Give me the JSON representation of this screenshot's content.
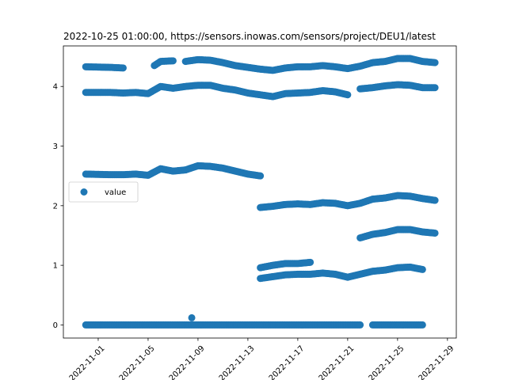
{
  "chart_data": {
    "type": "scatter",
    "title": "2022-10-25 01:00:00, https://sensors.inowas.com/sensors/project/DEU1/latest",
    "xlabel": "",
    "ylabel": "",
    "xlim": [
      "2022-10-29T05:00",
      "2022-11-29T17:00"
    ],
    "ylim": [
      -0.22,
      4.68
    ],
    "x_ticks": [
      "2022-11-01",
      "2022-11-05",
      "2022-11-09",
      "2022-11-13",
      "2022-11-17",
      "2022-11-21",
      "2022-11-25",
      "2022-11-29"
    ],
    "y_ticks": [
      0,
      1,
      2,
      3,
      4
    ],
    "grid": false,
    "legend": {
      "position": "center-left",
      "entries": [
        "value"
      ]
    },
    "marker_color": "#1f77b4",
    "series": [
      {
        "name": "value",
        "segments": [
          {
            "points": [
              [
                "2022-10-31",
                4.33
              ],
              [
                "2022-11-02",
                4.32
              ],
              [
                "2022-11-03",
                4.31
              ]
            ]
          },
          {
            "points": [
              [
                "2022-11-05T12:00",
                4.35
              ],
              [
                "2022-11-06",
                4.42
              ],
              [
                "2022-11-07",
                4.43
              ]
            ]
          },
          {
            "points": [
              [
                "2022-11-08",
                4.42
              ],
              [
                "2022-11-09",
                4.45
              ],
              [
                "2022-11-10",
                4.44
              ],
              [
                "2022-11-11",
                4.4
              ],
              [
                "2022-11-12",
                4.35
              ],
              [
                "2022-11-14",
                4.29
              ],
              [
                "2022-11-15",
                4.27
              ],
              [
                "2022-11-16",
                4.31
              ],
              [
                "2022-11-17",
                4.33
              ],
              [
                "2022-11-18",
                4.33
              ],
              [
                "2022-11-19",
                4.35
              ],
              [
                "2022-11-20",
                4.33
              ],
              [
                "2022-11-21",
                4.3
              ],
              [
                "2022-11-22",
                4.34
              ],
              [
                "2022-11-23",
                4.4
              ],
              [
                "2022-11-24",
                4.42
              ],
              [
                "2022-11-25",
                4.47
              ],
              [
                "2022-11-26",
                4.47
              ],
              [
                "2022-11-27",
                4.42
              ],
              [
                "2022-11-28",
                4.4
              ]
            ]
          },
          {
            "points": [
              [
                "2022-10-31",
                3.9
              ],
              [
                "2022-11-02",
                3.9
              ],
              [
                "2022-11-03",
                3.89
              ],
              [
                "2022-11-04",
                3.9
              ],
              [
                "2022-11-05",
                3.88
              ],
              [
                "2022-11-06",
                4.0
              ],
              [
                "2022-11-07",
                3.97
              ],
              [
                "2022-11-08",
                4.0
              ],
              [
                "2022-11-09",
                4.02
              ],
              [
                "2022-11-10",
                4.02
              ],
              [
                "2022-11-11",
                3.97
              ],
              [
                "2022-11-12",
                3.94
              ],
              [
                "2022-11-13",
                3.89
              ],
              [
                "2022-11-14",
                3.86
              ],
              [
                "2022-11-15",
                3.83
              ],
              [
                "2022-11-16",
                3.88
              ],
              [
                "2022-11-17",
                3.89
              ],
              [
                "2022-11-18",
                3.9
              ],
              [
                "2022-11-19",
                3.93
              ],
              [
                "2022-11-20",
                3.91
              ],
              [
                "2022-11-21",
                3.86
              ]
            ]
          },
          {
            "points": [
              [
                "2022-11-22",
                3.96
              ],
              [
                "2022-11-23",
                3.98
              ],
              [
                "2022-11-24",
                4.01
              ],
              [
                "2022-11-25",
                4.03
              ],
              [
                "2022-11-26",
                4.02
              ],
              [
                "2022-11-27",
                3.98
              ],
              [
                "2022-11-28",
                3.98
              ]
            ]
          },
          {
            "points": [
              [
                "2022-10-31",
                2.53
              ],
              [
                "2022-11-02",
                2.52
              ],
              [
                "2022-11-03",
                2.52
              ],
              [
                "2022-11-04",
                2.53
              ],
              [
                "2022-11-05",
                2.51
              ],
              [
                "2022-11-06",
                2.62
              ],
              [
                "2022-11-07",
                2.58
              ],
              [
                "2022-11-08",
                2.6
              ],
              [
                "2022-11-09",
                2.67
              ],
              [
                "2022-11-10",
                2.66
              ],
              [
                "2022-11-11",
                2.63
              ],
              [
                "2022-11-12",
                2.58
              ],
              [
                "2022-11-13",
                2.53
              ],
              [
                "2022-11-14",
                2.5
              ]
            ]
          },
          {
            "points": [
              [
                "2022-11-14",
                1.97
              ],
              [
                "2022-11-15",
                1.99
              ],
              [
                "2022-11-16",
                2.02
              ],
              [
                "2022-11-17",
                2.03
              ],
              [
                "2022-11-18",
                2.02
              ],
              [
                "2022-11-19",
                2.05
              ],
              [
                "2022-11-20",
                2.04
              ],
              [
                "2022-11-21",
                2.0
              ],
              [
                "2022-11-22",
                2.04
              ],
              [
                "2022-11-23",
                2.11
              ],
              [
                "2022-11-24",
                2.13
              ],
              [
                "2022-11-25",
                2.17
              ],
              [
                "2022-11-26",
                2.16
              ],
              [
                "2022-11-27",
                2.12
              ],
              [
                "2022-11-28",
                2.09
              ]
            ]
          },
          {
            "points": [
              [
                "2022-11-22",
                1.46
              ],
              [
                "2022-11-23",
                1.52
              ],
              [
                "2022-11-24",
                1.55
              ],
              [
                "2022-11-25",
                1.6
              ],
              [
                "2022-11-26",
                1.6
              ],
              [
                "2022-11-27",
                1.56
              ],
              [
                "2022-11-28",
                1.54
              ]
            ]
          },
          {
            "points": [
              [
                "2022-11-14",
                0.96
              ],
              [
                "2022-11-15",
                1.0
              ],
              [
                "2022-11-16",
                1.03
              ],
              [
                "2022-11-17",
                1.03
              ],
              [
                "2022-11-18",
                1.05
              ]
            ]
          },
          {
            "points": [
              [
                "2022-11-14",
                0.78
              ],
              [
                "2022-11-15",
                0.81
              ],
              [
                "2022-11-16",
                0.84
              ],
              [
                "2022-11-17",
                0.85
              ],
              [
                "2022-11-18",
                0.85
              ],
              [
                "2022-11-19",
                0.87
              ],
              [
                "2022-11-20",
                0.85
              ],
              [
                "2022-11-21",
                0.8
              ],
              [
                "2022-11-22",
                0.85
              ],
              [
                "2022-11-23",
                0.9
              ],
              [
                "2022-11-24",
                0.92
              ],
              [
                "2022-11-25",
                0.96
              ],
              [
                "2022-11-26",
                0.97
              ],
              [
                "2022-11-27",
                0.93
              ]
            ]
          },
          {
            "points": [
              [
                "2022-10-31",
                0.0
              ],
              [
                "2022-11-05",
                0.0
              ],
              [
                "2022-11-10",
                0.0
              ],
              [
                "2022-11-15",
                0.0
              ],
              [
                "2022-11-20",
                0.0
              ],
              [
                "2022-11-22",
                0.0
              ]
            ]
          },
          {
            "points": [
              [
                "2022-11-23",
                0.0
              ],
              [
                "2022-11-24",
                0.0
              ],
              [
                "2022-11-25",
                0.0
              ],
              [
                "2022-11-26",
                0.0
              ],
              [
                "2022-11-27",
                0.0
              ]
            ]
          },
          {
            "points": [
              [
                "2022-11-08T12:00",
                0.12
              ]
            ]
          }
        ]
      }
    ]
  }
}
